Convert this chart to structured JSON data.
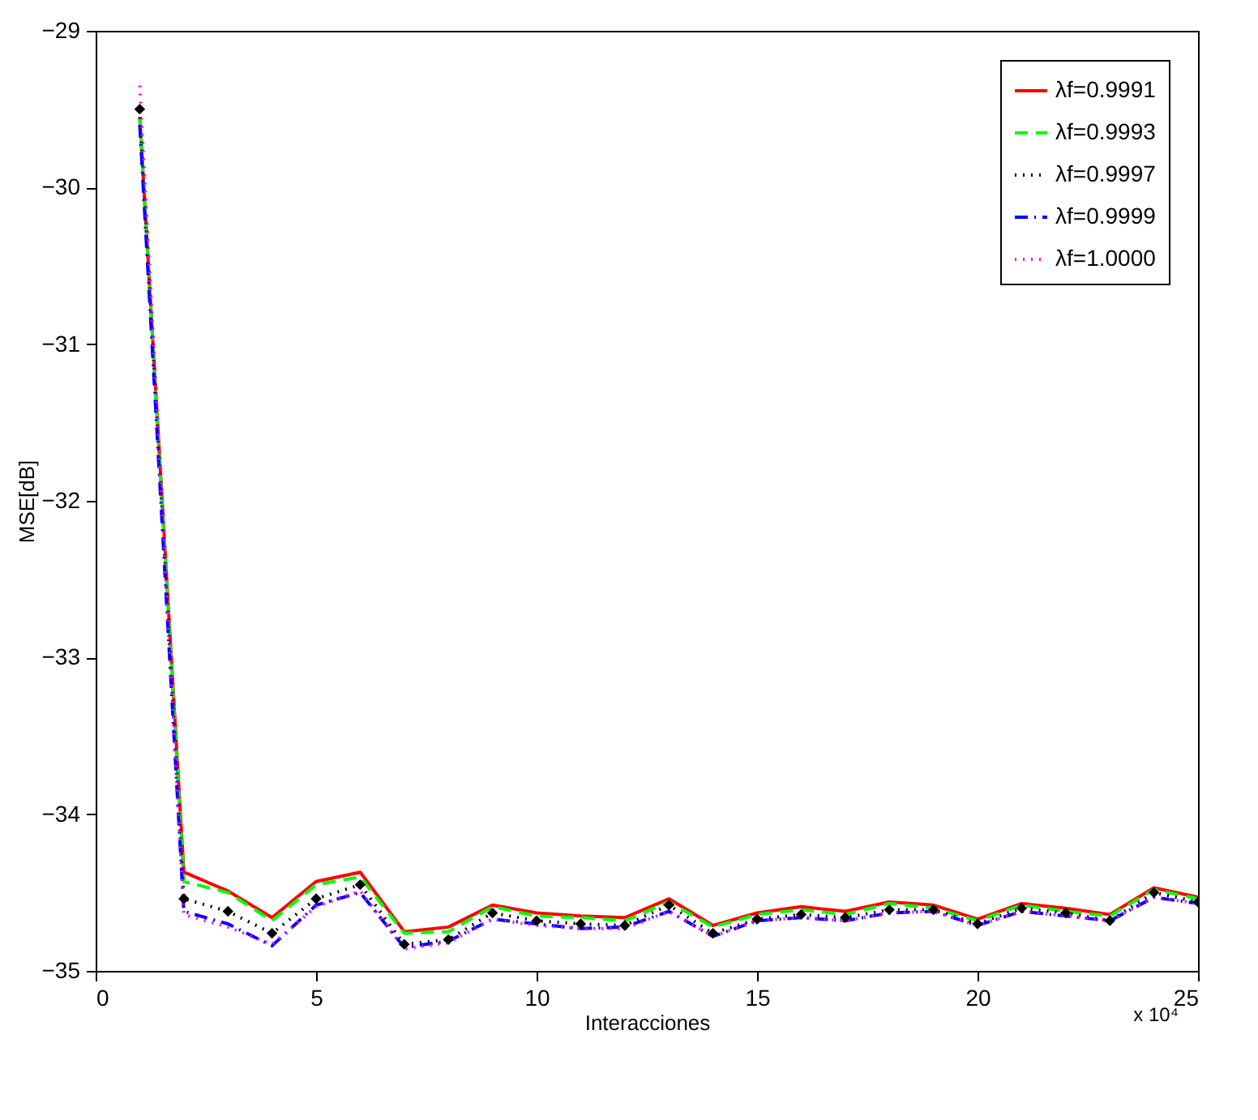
{
  "chart_data": {
    "type": "line",
    "xlabel": "Interacciones",
    "ylabel": "MSE[dB]",
    "x": [
      1,
      2,
      3,
      4,
      5,
      6,
      7,
      8,
      9,
      10,
      11,
      12,
      13,
      14,
      15,
      16,
      17,
      18,
      19,
      20,
      21,
      22,
      23,
      24,
      25
    ],
    "series": [
      {
        "name": "λf=0.9991",
        "color": "#ff0000",
        "line_style": "solid",
        "marker": "none",
        "values": [
          -29.55,
          -34.37,
          -34.49,
          -34.66,
          -34.43,
          -34.37,
          -34.75,
          -34.72,
          -34.58,
          -34.63,
          -34.65,
          -34.66,
          -34.54,
          -34.71,
          -34.63,
          -34.59,
          -34.62,
          -34.56,
          -34.58,
          -34.67,
          -34.57,
          -34.6,
          -34.64,
          -34.47,
          -34.53
        ]
      },
      {
        "name": "λf=0.9993",
        "color": "#00ff00",
        "line_style": "dashed",
        "marker": "none",
        "values": [
          -29.55,
          -34.43,
          -34.5,
          -34.68,
          -34.45,
          -34.4,
          -34.76,
          -34.75,
          -34.59,
          -34.65,
          -34.66,
          -34.68,
          -34.56,
          -34.72,
          -34.64,
          -34.61,
          -34.64,
          -34.57,
          -34.6,
          -34.68,
          -34.58,
          -34.62,
          -34.65,
          -34.48,
          -34.54
        ]
      },
      {
        "name": "λf=0.9997",
        "color": "#000000",
        "line_style": "dotted",
        "marker": "diamond",
        "values": [
          -29.5,
          -34.54,
          -34.62,
          -34.76,
          -34.54,
          -34.45,
          -34.83,
          -34.8,
          -34.63,
          -34.68,
          -34.7,
          -34.71,
          -34.58,
          -34.76,
          -34.67,
          -34.64,
          -34.66,
          -34.61,
          -34.61,
          -34.7,
          -34.6,
          -34.63,
          -34.68,
          -34.5,
          -34.56
        ]
      },
      {
        "name": "λf=0.9999",
        "color": "#0000ff",
        "line_style": "dashdot",
        "marker": "none",
        "values": [
          -29.6,
          -34.62,
          -34.7,
          -34.84,
          -34.58,
          -34.5,
          -34.85,
          -34.81,
          -34.67,
          -34.7,
          -34.73,
          -34.72,
          -34.62,
          -34.78,
          -34.68,
          -34.66,
          -34.68,
          -34.63,
          -34.62,
          -34.71,
          -34.62,
          -34.65,
          -34.68,
          -34.53,
          -34.57
        ]
      },
      {
        "name": "λf=1.0000",
        "color": "#ff00ff",
        "line_style": "dotted",
        "marker": "none",
        "values": [
          -29.35,
          -34.64,
          -34.72,
          -34.83,
          -34.59,
          -34.49,
          -34.86,
          -34.82,
          -34.67,
          -34.71,
          -34.73,
          -34.73,
          -34.62,
          -34.78,
          -34.68,
          -34.66,
          -34.68,
          -34.63,
          -34.62,
          -34.71,
          -34.62,
          -34.65,
          -34.68,
          -34.53,
          -34.57
        ]
      }
    ],
    "xlim": [
      0,
      25
    ],
    "xticks": [
      0,
      5,
      10,
      15,
      20,
      25
    ],
    "ylim": [
      -35,
      -29
    ],
    "yticks": [
      -35,
      -34,
      -33,
      -32,
      -31,
      -30,
      -29
    ],
    "annotations": [
      "x 10⁴"
    ],
    "legend": "top right",
    "grid": false
  }
}
